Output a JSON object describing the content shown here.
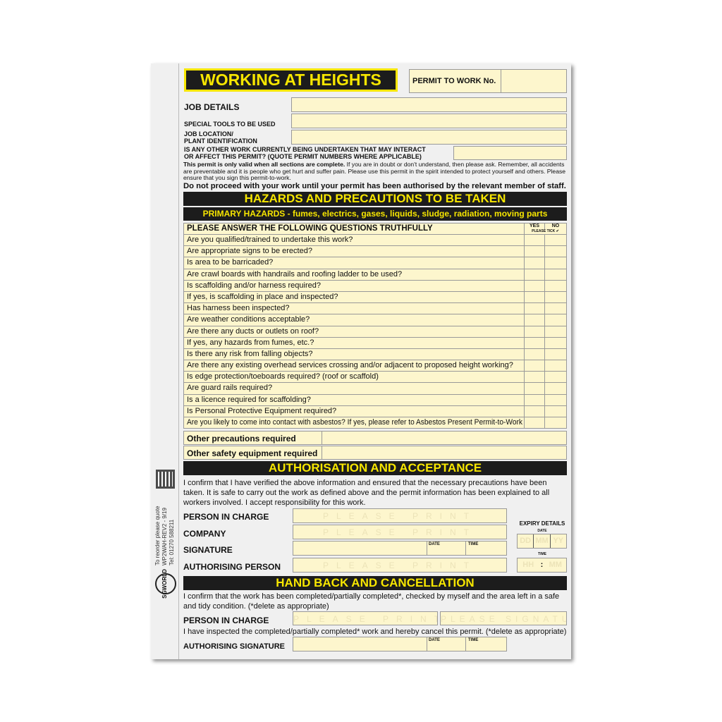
{
  "title": "WORKING AT HEIGHTS",
  "permit_no_label": "PERMIT TO WORK No.",
  "job_details": "JOB DETAILS",
  "special_tools": "SPECIAL TOOLS TO BE USED",
  "job_location": "JOB LOCATION/",
  "plant_id": "PLANT IDENTIFICATION",
  "other_work_1": "IS ANY OTHER WORK CURRENTLY BEING UNDERTAKEN THAT MAY INTERACT",
  "other_work_2": "OR AFFECT THIS PERMIT? (QUOTE PERMIT NUMBERS WHERE APPLICABLE)",
  "notice_bold": "This permit is only valid when all sections are complete.",
  "notice_text": " If you are in doubt or don't understand, then please ask. Remember, all accidents are preventable and it is people who get hurt and suffer pain. Please use this permit in the spirit intended to protect yourself and others. Please ensure that you sign this permit-to-work.",
  "warning": "Do not proceed with your work until your permit has been authorised by the relevant member of staff.",
  "hazards_title": "HAZARDS AND PRECAUTIONS TO BE TAKEN",
  "primary_hazards": "PRIMARY HAZARDS - fumes, electrics, gases, liquids, sludge, radiation, moving parts",
  "questions_header": "PLEASE ANSWER THE FOLLOWING QUESTIONS TRUTHFULLY",
  "yes": "YES",
  "no": "NO",
  "please_tick": "PLEASE TICK ✔",
  "questions": [
    "Are you qualified/trained to undertake this work?",
    "Are appropriate signs to be erected?",
    "Is area to be barricaded?",
    "Are crawl boards with handrails and roofing ladder to be used?",
    "Is scaffolding and/or harness required?",
    "If yes, is scaffolding in place and inspected?",
    "Has harness been inspected?",
    "Are weather conditions acceptable?",
    "Are there any ducts or outlets on roof?",
    "If yes, any hazards from fumes, etc.?",
    "Is there any risk from falling objects?",
    "Are there any existing overhead services crossing and/or adjacent to proposed height working?",
    "Is edge protection/toeboards required? (roof or scaffold)",
    "Are guard rails required?",
    "Is a licence required for scaffolding?",
    "Is Personal Protective Equipment required?",
    "Are you likely to come into contact with asbestos? If yes, please refer to Asbestos Present Permit-to-Work"
  ],
  "other_precautions": "Other precautions required",
  "other_safety": "Other safety equipment required",
  "auth_title": "AUTHORISATION AND ACCEPTANCE",
  "auth_text": "I confirm that I have verified the above information and ensured that the necessary precautions have been taken. It is safe to carry out the work as defined above and the permit information has been explained to all workers involved. I accept responsibility for this work.",
  "person_in_charge": "PERSON IN CHARGE",
  "company": "COMPANY",
  "signature": "SIGNATURE",
  "authorising_person": "AUTHORISING PERSON",
  "please_print": "PLEASE PRINT",
  "please_sign": "PLEASE SIGNATURE",
  "date": "DATE",
  "time": "TIME",
  "expiry": "EXPIRY DETAILS",
  "dd": "DD",
  "mm": "MM",
  "yy": "YY",
  "hh": "HH",
  "colon": ":",
  "handback_title": "HAND BACK AND CANCELLATION",
  "handback_text": "I confirm that the work has been completed/partially completed*, checked by myself and the area left in a safe and tidy condition. (*delete as appropriate)",
  "cancel_text": "I have inspected the completed/partially completed* work and hereby cancel this permit. (*delete as appropriate)",
  "authorising_signature": "AUTHORISING SIGNATURE",
  "side_1": "To reorder please quote",
  "side_2": "WP2WAH-REV2 - 9/19",
  "side_3": "Tel: 01270 588211",
  "logo": "SGWORLD",
  "colors": {
    "field": "#fdf6cd",
    "bar": "#1c1c1c",
    "accent": "#f7e600"
  }
}
